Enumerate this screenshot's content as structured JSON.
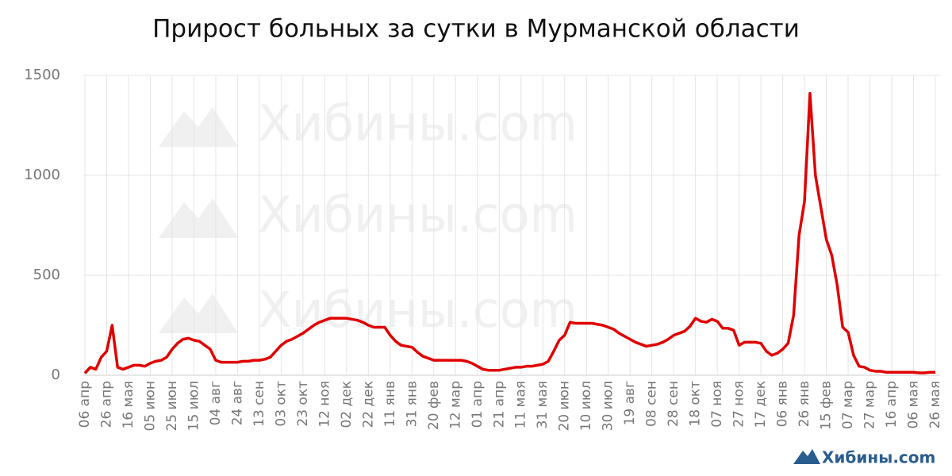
{
  "chart_data": {
    "type": "line",
    "title": "Прирост больных за сутки в Мурманской области",
    "watermark": "Хибины.com",
    "categories": [
      "06 апр",
      null,
      null,
      null,
      "26 апр",
      null,
      null,
      null,
      "16 мая",
      null,
      null,
      null,
      "05 июн",
      null,
      null,
      null,
      "25 июн",
      null,
      null,
      null,
      "15 июл",
      null,
      null,
      null,
      "04 авг",
      null,
      null,
      null,
      "24 авг",
      null,
      null,
      null,
      "13 сен",
      null,
      null,
      null,
      "03 окт",
      null,
      null,
      null,
      "23 окт",
      null,
      null,
      null,
      "12 ноя",
      null,
      null,
      null,
      "02 дек",
      null,
      null,
      null,
      "22 дек",
      null,
      null,
      null,
      "11 янв",
      null,
      null,
      null,
      "31 янв",
      null,
      null,
      null,
      "20 фев",
      null,
      null,
      null,
      "12 мар",
      null,
      null,
      null,
      "01 апр",
      null,
      null,
      null,
      "21 апр",
      null,
      null,
      null,
      "11 мая",
      null,
      null,
      null,
      "31 мая",
      null,
      null,
      null,
      "20 июн",
      null,
      null,
      null,
      "10 июл",
      null,
      null,
      null,
      "30 июл",
      null,
      null,
      null,
      "19 авг",
      null,
      null,
      null,
      "08 сен",
      null,
      null,
      null,
      "28 сен",
      null,
      null,
      null,
      "18 окт",
      null,
      null,
      null,
      "07 ноя",
      null,
      null,
      null,
      "27 ноя",
      null,
      null,
      null,
      "17 дек",
      null,
      null,
      null,
      "06 янв",
      null,
      null,
      null,
      "26 янв",
      null,
      null,
      null,
      "15 фев",
      null,
      null,
      null,
      "07 мар",
      null,
      null,
      null,
      "27 мар",
      null,
      null,
      null,
      "16 апр",
      null,
      null,
      null,
      "06 мая",
      null,
      null,
      null,
      "26 мая"
    ],
    "values": [
      10,
      40,
      30,
      90,
      120,
      250,
      40,
      30,
      40,
      50,
      50,
      45,
      60,
      70,
      75,
      90,
      130,
      160,
      180,
      185,
      175,
      170,
      150,
      130,
      75,
      65,
      65,
      65,
      65,
      70,
      70,
      75,
      75,
      80,
      90,
      120,
      150,
      170,
      180,
      195,
      210,
      230,
      250,
      265,
      275,
      285,
      285,
      285,
      285,
      280,
      275,
      265,
      250,
      240,
      240,
      240,
      200,
      170,
      150,
      145,
      140,
      115,
      95,
      85,
      75,
      75,
      75,
      75,
      75,
      75,
      70,
      60,
      45,
      30,
      25,
      25,
      25,
      30,
      35,
      40,
      40,
      45,
      45,
      50,
      55,
      70,
      120,
      175,
      200,
      265,
      260,
      260,
      260,
      260,
      255,
      250,
      240,
      230,
      210,
      195,
      180,
      165,
      155,
      145,
      150,
      155,
      165,
      180,
      200,
      210,
      220,
      245,
      285,
      270,
      265,
      280,
      270,
      235,
      235,
      225,
      150,
      165,
      165,
      165,
      160,
      120,
      100,
      110,
      130,
      160,
      300,
      700,
      870,
      1410,
      1000,
      840,
      680,
      600,
      450,
      240,
      215,
      100,
      45,
      40,
      25,
      20,
      20,
      15,
      15,
      15,
      15,
      15,
      15,
      12,
      12,
      15,
      15
    ],
    "color": "#e00000",
    "ylim": [
      0,
      1500
    ],
    "yticks": [
      0,
      500,
      1000,
      1500
    ],
    "grid": true
  }
}
